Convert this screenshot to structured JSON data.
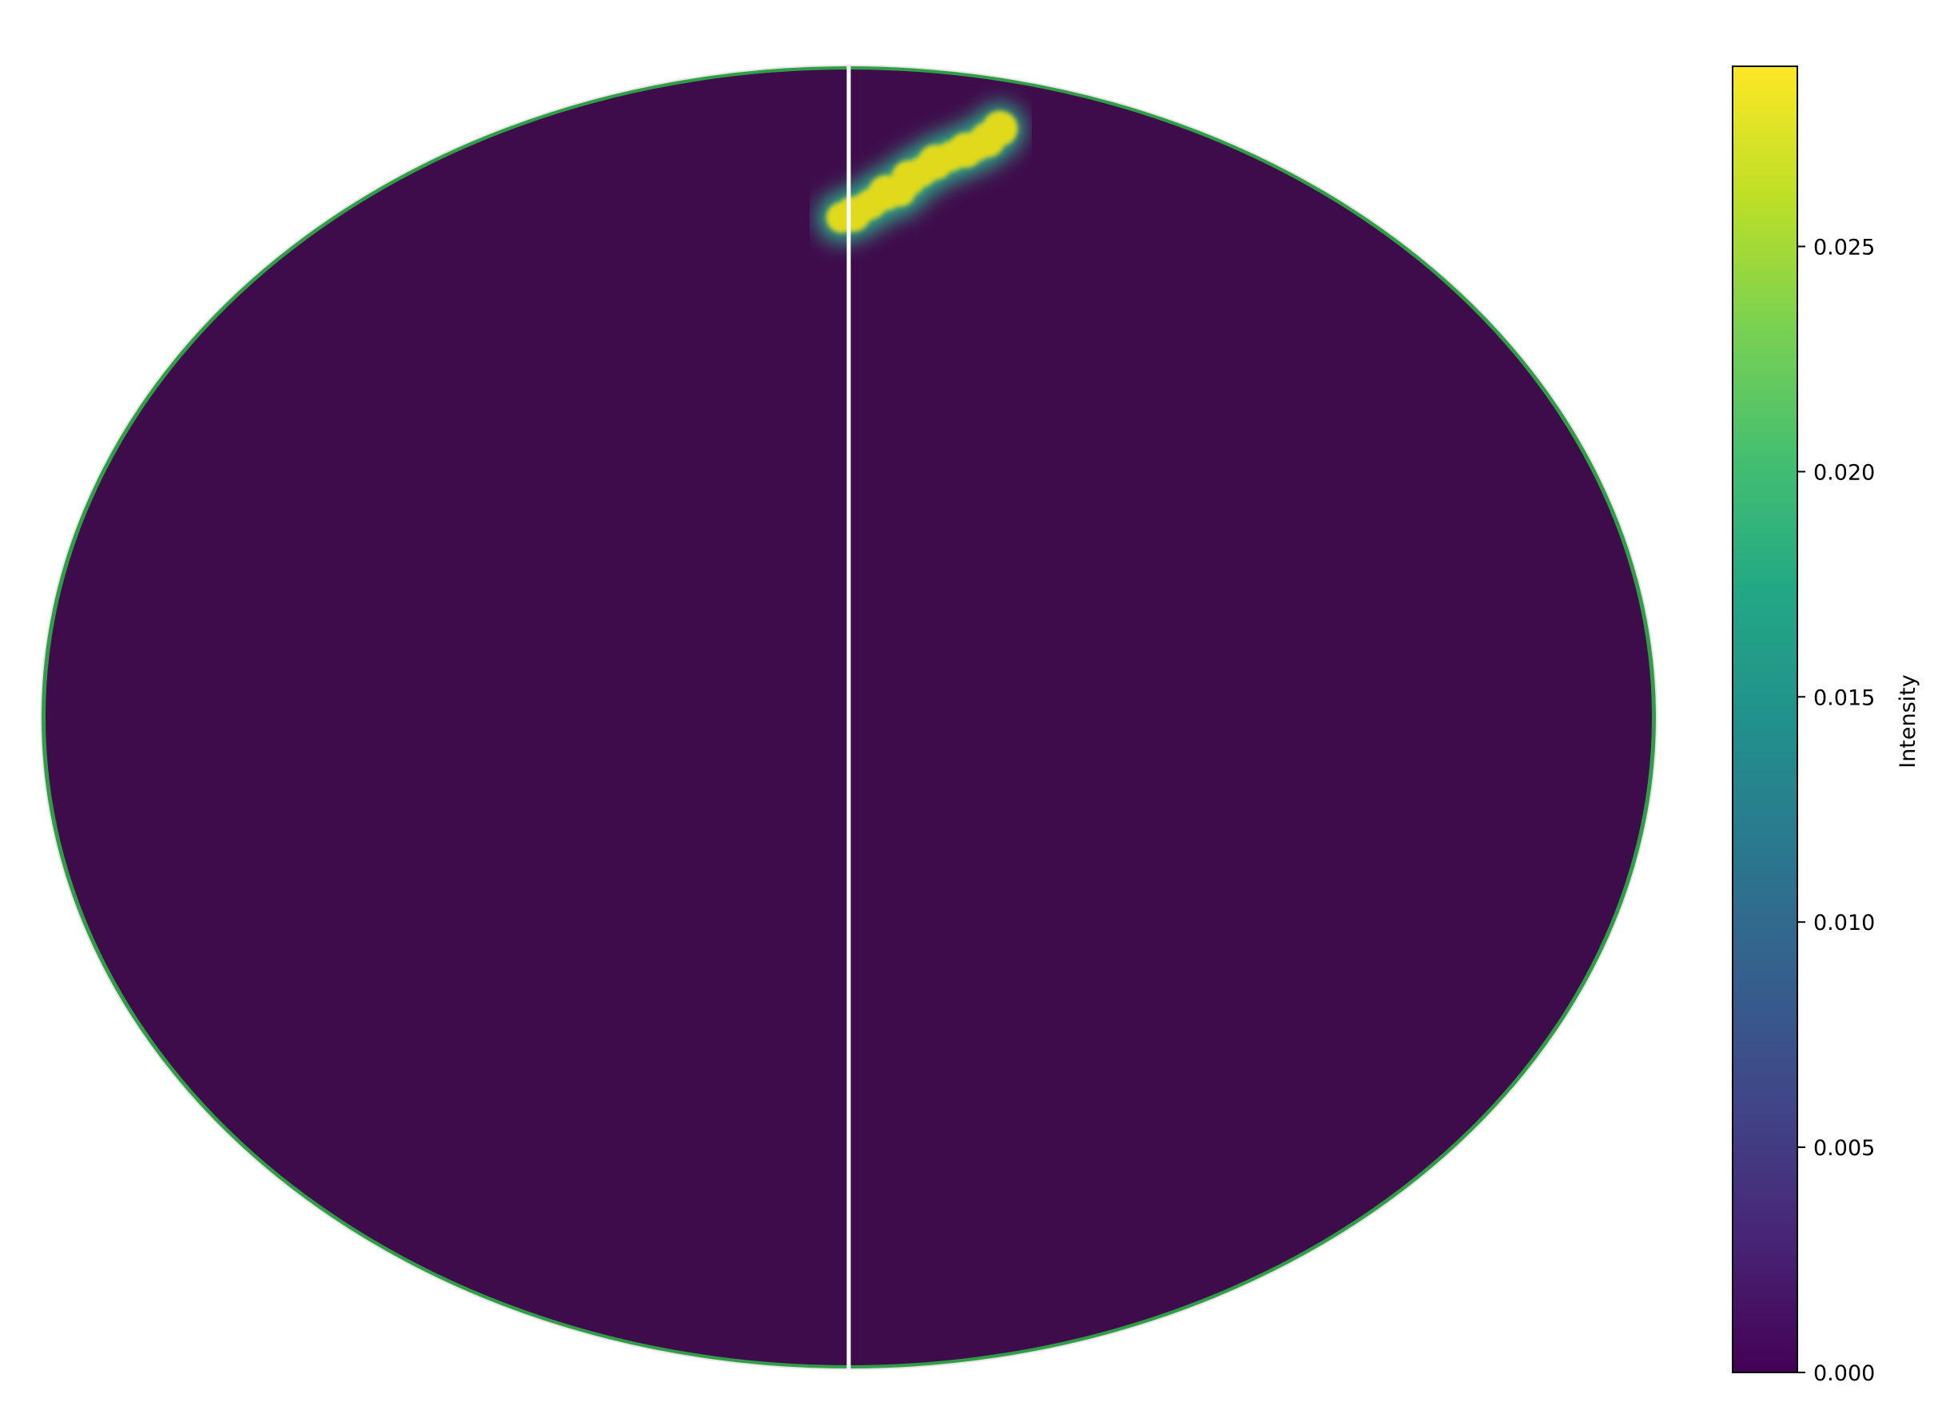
{
  "chart_data": {
    "type": "heatmap",
    "projection": "mollweide",
    "title": "",
    "colormap": "viridis",
    "background_value": 0.001,
    "colorbar": {
      "label": "Intensity",
      "vmin": 0.0,
      "vmax": 0.029,
      "ticks": [
        0.0,
        0.005,
        0.01,
        0.015,
        0.02,
        0.025
      ],
      "tick_labels": [
        "0.000",
        "0.005",
        "0.010",
        "0.015",
        "0.020",
        "0.025"
      ]
    },
    "meridian_line": {
      "longitude_deg": 0,
      "color": "#ffffff"
    },
    "track": {
      "peak_value": 0.028,
      "points": [
        {
          "lon": -2.5,
          "lat": 60.5
        },
        {
          "lon": 1.5,
          "lat": 61.0
        },
        {
          "lon": 8.0,
          "lat": 62.5
        },
        {
          "lon": 14.0,
          "lat": 64.2
        },
        {
          "lon": 19.5,
          "lat": 64.4
        },
        {
          "lon": 24.0,
          "lat": 66.5
        },
        {
          "lon": 30.0,
          "lat": 67.5
        },
        {
          "lon": 37.0,
          "lat": 69.0
        },
        {
          "lon": 45.0,
          "lat": 70.0
        },
        {
          "lon": 53.0,
          "lat": 71.0
        },
        {
          "lon": 60.0,
          "lat": 71.8
        },
        {
          "lon": 67.0,
          "lat": 72.8
        },
        {
          "lon": 74.0,
          "lat": 74.0
        },
        {
          "lon": 79.0,
          "lat": 74.8
        }
      ]
    }
  },
  "colors": {
    "viridis_low": "#440154",
    "viridis_high": "#fde725",
    "map_fill": "#3f0c4b",
    "track": "#e0d91c",
    "rim": "#2f9e47"
  }
}
